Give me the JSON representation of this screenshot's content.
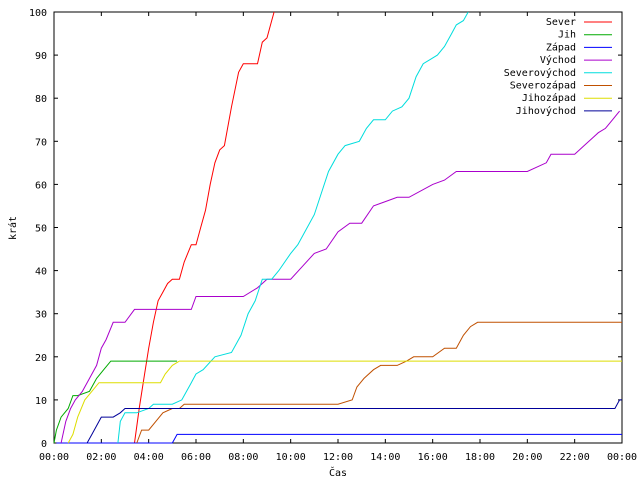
{
  "chart_data": {
    "type": "line",
    "xlabel": "Čas",
    "ylabel": "krát",
    "xlim": [
      0,
      24
    ],
    "ylim": [
      0,
      100
    ],
    "grid": false,
    "legend_position": "top-right",
    "x_ticks": [
      "00:00",
      "02:00",
      "04:00",
      "06:00",
      "08:00",
      "10:00",
      "12:00",
      "14:00",
      "16:00",
      "18:00",
      "20:00",
      "22:00",
      "00:00"
    ],
    "y_ticks": [
      0,
      10,
      20,
      30,
      40,
      50,
      60,
      70,
      80,
      90,
      100
    ],
    "series": [
      {
        "name": "Sever",
        "color": "#ff0000",
        "points": [
          [
            3.4,
            0
          ],
          [
            3.6,
            8
          ],
          [
            3.8,
            15
          ],
          [
            4.0,
            22
          ],
          [
            4.2,
            28
          ],
          [
            4.4,
            33
          ],
          [
            4.6,
            35
          ],
          [
            4.8,
            37
          ],
          [
            5.0,
            38
          ],
          [
            5.3,
            38
          ],
          [
            5.5,
            42
          ],
          [
            5.8,
            46
          ],
          [
            6.0,
            46
          ],
          [
            6.2,
            50
          ],
          [
            6.4,
            54
          ],
          [
            6.6,
            60
          ],
          [
            6.8,
            65
          ],
          [
            7.0,
            68
          ],
          [
            7.2,
            69
          ],
          [
            7.5,
            78
          ],
          [
            7.8,
            86
          ],
          [
            8.0,
            88
          ],
          [
            8.3,
            88
          ],
          [
            8.6,
            88
          ],
          [
            8.8,
            93
          ],
          [
            9.0,
            94
          ],
          [
            9.2,
            98
          ],
          [
            9.3,
            100
          ]
        ]
      },
      {
        "name": "Jih",
        "color": "#00aa00",
        "points": [
          [
            0.0,
            0
          ],
          [
            0.1,
            3
          ],
          [
            0.3,
            6
          ],
          [
            0.6,
            8
          ],
          [
            0.8,
            11
          ],
          [
            1.0,
            11
          ],
          [
            1.5,
            12
          ],
          [
            1.8,
            15
          ],
          [
            2.1,
            17
          ],
          [
            2.4,
            19
          ],
          [
            3.0,
            19
          ],
          [
            4.0,
            19
          ],
          [
            5.0,
            19
          ],
          [
            5.2,
            19
          ]
        ]
      },
      {
        "name": "Západ",
        "color": "#0000ff",
        "points": [
          [
            0.1,
            0
          ],
          [
            0.3,
            0
          ],
          [
            1.0,
            0
          ],
          [
            2.0,
            0
          ],
          [
            3.0,
            0
          ],
          [
            4.0,
            0
          ],
          [
            5.0,
            0
          ],
          [
            5.1,
            1
          ],
          [
            5.2,
            2
          ],
          [
            6.0,
            2
          ],
          [
            10.0,
            2
          ],
          [
            14.0,
            2
          ],
          [
            18.0,
            2
          ],
          [
            22.0,
            2
          ],
          [
            24.0,
            2
          ]
        ]
      },
      {
        "name": "Východ",
        "color": "#aa00cc",
        "points": [
          [
            0.3,
            0
          ],
          [
            0.5,
            5
          ],
          [
            0.7,
            8
          ],
          [
            0.9,
            10
          ],
          [
            1.2,
            12
          ],
          [
            1.5,
            15
          ],
          [
            1.8,
            18
          ],
          [
            2.0,
            22
          ],
          [
            2.2,
            24
          ],
          [
            2.5,
            28
          ],
          [
            3.0,
            28
          ],
          [
            3.4,
            31
          ],
          [
            4.0,
            31
          ],
          [
            5.0,
            31
          ],
          [
            5.8,
            31
          ],
          [
            6.0,
            34
          ],
          [
            7.0,
            34
          ],
          [
            8.0,
            34
          ],
          [
            8.6,
            36
          ],
          [
            9.0,
            38
          ],
          [
            10.0,
            38
          ],
          [
            10.5,
            41
          ],
          [
            11.0,
            44
          ],
          [
            11.5,
            45
          ],
          [
            12.0,
            49
          ],
          [
            12.5,
            51
          ],
          [
            13.0,
            51
          ],
          [
            13.5,
            55
          ],
          [
            14.0,
            56
          ],
          [
            14.5,
            57
          ],
          [
            15.0,
            57
          ],
          [
            16.0,
            60
          ],
          [
            16.5,
            61
          ],
          [
            17.0,
            63
          ],
          [
            17.5,
            63
          ],
          [
            18.0,
            63
          ],
          [
            19.0,
            63
          ],
          [
            20.0,
            63
          ],
          [
            20.8,
            65
          ],
          [
            21.0,
            67
          ],
          [
            22.0,
            67
          ],
          [
            22.4,
            69
          ],
          [
            22.8,
            71
          ],
          [
            23.0,
            72
          ],
          [
            23.3,
            73
          ],
          [
            23.6,
            75
          ],
          [
            23.9,
            77
          ]
        ]
      },
      {
        "name": "Severovýchod",
        "color": "#00dddd",
        "points": [
          [
            2.7,
            0
          ],
          [
            2.8,
            5
          ],
          [
            3.0,
            7
          ],
          [
            3.5,
            7
          ],
          [
            4.0,
            8
          ],
          [
            4.2,
            9
          ],
          [
            5.0,
            9
          ],
          [
            5.4,
            10
          ],
          [
            5.8,
            14
          ],
          [
            6.0,
            16
          ],
          [
            6.3,
            17
          ],
          [
            6.8,
            20
          ],
          [
            7.5,
            21
          ],
          [
            7.9,
            25
          ],
          [
            8.2,
            30
          ],
          [
            8.5,
            33
          ],
          [
            8.8,
            38
          ],
          [
            9.2,
            38
          ],
          [
            9.5,
            40
          ],
          [
            10.0,
            44
          ],
          [
            10.3,
            46
          ],
          [
            10.6,
            49
          ],
          [
            11.0,
            53
          ],
          [
            11.3,
            58
          ],
          [
            11.6,
            63
          ],
          [
            12.0,
            67
          ],
          [
            12.3,
            69
          ],
          [
            12.9,
            70
          ],
          [
            13.2,
            73
          ],
          [
            13.5,
            75
          ],
          [
            14.0,
            75
          ],
          [
            14.3,
            77
          ],
          [
            14.7,
            78
          ],
          [
            15.0,
            80
          ],
          [
            15.3,
            85
          ],
          [
            15.6,
            88
          ],
          [
            15.9,
            89
          ],
          [
            16.2,
            90
          ],
          [
            16.5,
            92
          ],
          [
            16.8,
            95
          ],
          [
            17.0,
            97
          ],
          [
            17.3,
            98
          ],
          [
            17.5,
            100
          ]
        ]
      },
      {
        "name": "Severozápad",
        "color": "#c05000",
        "points": [
          [
            3.5,
            0
          ],
          [
            3.7,
            3
          ],
          [
            4.0,
            3
          ],
          [
            4.3,
            5
          ],
          [
            4.6,
            7
          ],
          [
            5.0,
            8
          ],
          [
            5.3,
            8
          ],
          [
            5.5,
            9
          ],
          [
            6.0,
            9
          ],
          [
            8.0,
            9
          ],
          [
            10.0,
            9
          ],
          [
            12.0,
            9
          ],
          [
            12.6,
            10
          ],
          [
            12.8,
            13
          ],
          [
            13.1,
            15
          ],
          [
            13.5,
            17
          ],
          [
            13.8,
            18
          ],
          [
            14.2,
            18
          ],
          [
            14.5,
            18
          ],
          [
            14.9,
            19
          ],
          [
            15.2,
            20
          ],
          [
            16.0,
            20
          ],
          [
            16.5,
            22
          ],
          [
            17.0,
            22
          ],
          [
            17.3,
            25
          ],
          [
            17.6,
            27
          ],
          [
            17.9,
            28
          ],
          [
            20.0,
            28
          ],
          [
            22.0,
            28
          ],
          [
            24.0,
            28
          ]
        ]
      },
      {
        "name": "Jihozápad",
        "color": "#dddd00",
        "points": [
          [
            0.6,
            0
          ],
          [
            0.8,
            2
          ],
          [
            1.0,
            6
          ],
          [
            1.3,
            10
          ],
          [
            1.6,
            12
          ],
          [
            1.9,
            14
          ],
          [
            2.2,
            14
          ],
          [
            2.6,
            14
          ],
          [
            3.0,
            14
          ],
          [
            3.5,
            14
          ],
          [
            4.0,
            14
          ],
          [
            4.5,
            14
          ],
          [
            4.7,
            16
          ],
          [
            5.0,
            18
          ],
          [
            5.3,
            19
          ],
          [
            6.0,
            19
          ],
          [
            10.0,
            19
          ],
          [
            14.0,
            19
          ],
          [
            18.0,
            19
          ],
          [
            22.0,
            19
          ],
          [
            24.0,
            19
          ]
        ]
      },
      {
        "name": "Jihovýchod",
        "color": "#000099",
        "points": [
          [
            1.4,
            0
          ],
          [
            1.6,
            2
          ],
          [
            1.8,
            4
          ],
          [
            2.0,
            6
          ],
          [
            2.5,
            6
          ],
          [
            2.8,
            7
          ],
          [
            3.0,
            8
          ],
          [
            3.5,
            8
          ],
          [
            4.0,
            8
          ],
          [
            5.0,
            8
          ],
          [
            6.0,
            8
          ],
          [
            10.0,
            8
          ],
          [
            14.0,
            8
          ],
          [
            18.0,
            8
          ],
          [
            22.0,
            8
          ],
          [
            23.7,
            8
          ],
          [
            23.9,
            10
          ],
          [
            24.0,
            10
          ]
        ]
      }
    ]
  }
}
